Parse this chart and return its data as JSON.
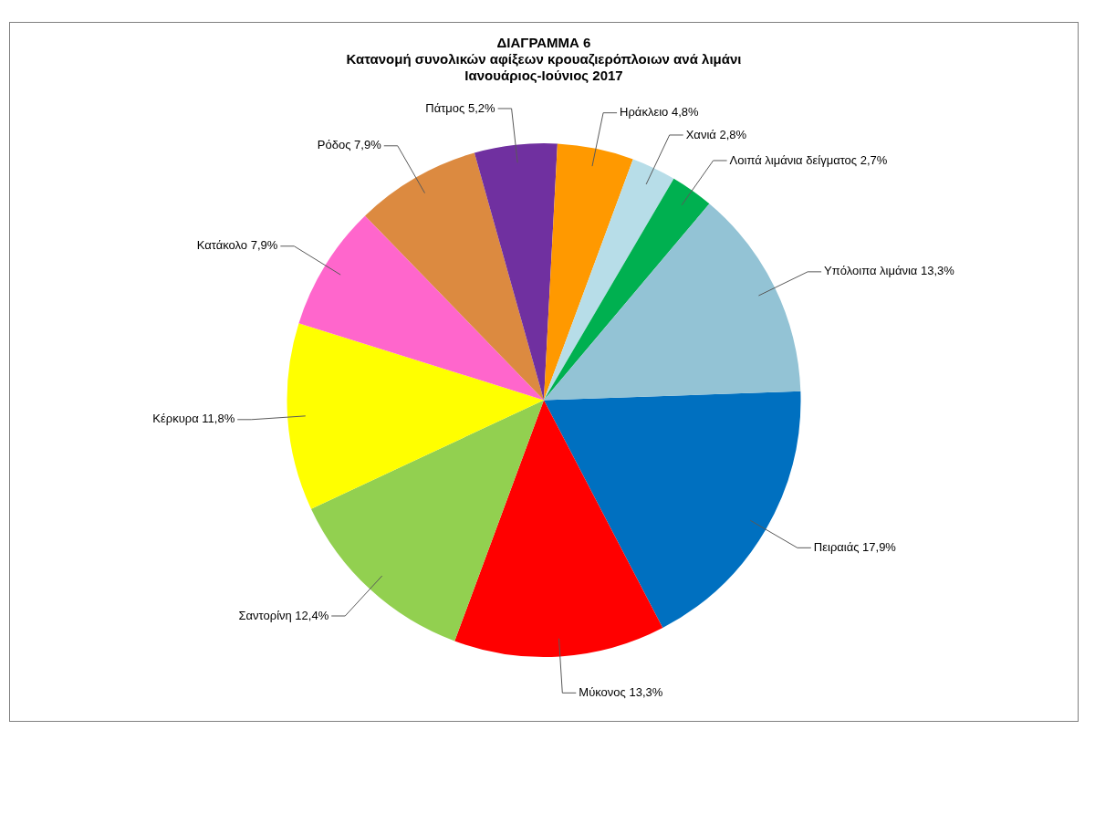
{
  "chart_data": {
    "type": "pie",
    "title": "ΔΙΑΓΡΑΜΜΑ 6",
    "subtitle": "Κατανομή συνολικών αφίξεων κρουαζιερόπλοιων ανά λιμάνι\nΙανουάριος-Ιούνιος 2017",
    "categories": [
      "Πειραιάς",
      "Μύκονος",
      "Σαντορίνη",
      "Κέρκυρα",
      "Κατάκολο",
      "Ρόδος",
      "Πάτμος",
      "Ηράκλειο",
      "Χανιά",
      "Λοιπά λιμάνια δείγματος",
      "Υπόλοιπα λιμάνια"
    ],
    "values": [
      17.9,
      13.3,
      12.4,
      11.8,
      7.9,
      7.9,
      5.2,
      4.8,
      2.8,
      2.7,
      13.3
    ],
    "value_labels": [
      "17,9%",
      "13,3%",
      "12,4%",
      "11,8%",
      "7,9%",
      "7,9%",
      "5,2%",
      "4,8%",
      "2,8%",
      "2,7%",
      "13,3%"
    ],
    "colors": [
      "#0070c0",
      "#ff0000",
      "#92d050",
      "#ffff00",
      "#ff66cc",
      "#dc8a40",
      "#7030a0",
      "#ff9900",
      "#b7dde8",
      "#00b050",
      "#93c3d5"
    ],
    "legend": false
  }
}
